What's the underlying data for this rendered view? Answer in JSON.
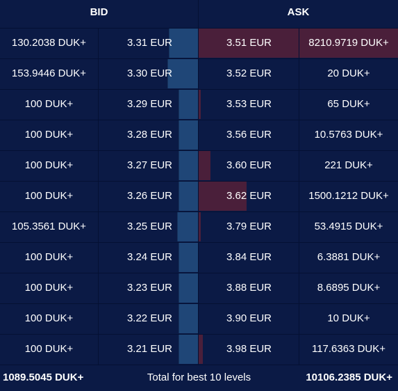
{
  "header": {
    "bid_label": "BID",
    "ask_label": "ASK"
  },
  "rows": [
    {
      "bid_qty": "130.2038 DUK+",
      "bid_price": "3.31 EUR",
      "ask_price": "3.51 EUR",
      "ask_qty": "8210.9719 DUK+",
      "bid_depth": 0.95,
      "ask_depth": 1.0
    },
    {
      "bid_qty": "153.9446 DUK+",
      "bid_price": "3.30 EUR",
      "ask_price": "3.52 EUR",
      "ask_qty": "20 DUK+",
      "bid_depth": 1.0,
      "ask_depth": 0.0
    },
    {
      "bid_qty": "100 DUK+",
      "bid_price": "3.29 EUR",
      "ask_price": "3.53 EUR",
      "ask_qty": "65 DUK+",
      "bid_depth": 0.63,
      "ask_depth": 0.01
    },
    {
      "bid_qty": "100 DUK+",
      "bid_price": "3.28 EUR",
      "ask_price": "3.56 EUR",
      "ask_qty": "10.5763 DUK+",
      "bid_depth": 0.63,
      "ask_depth": 0.0
    },
    {
      "bid_qty": "100 DUK+",
      "bid_price": "3.27 EUR",
      "ask_price": "3.60 EUR",
      "ask_qty": "221 DUK+",
      "bid_depth": 0.63,
      "ask_depth": 0.06
    },
    {
      "bid_qty": "100 DUK+",
      "bid_price": "3.26 EUR",
      "ask_price": "3.62 EUR",
      "ask_qty": "1500.1212 DUK+",
      "bid_depth": 0.63,
      "ask_depth": 0.24
    },
    {
      "bid_qty": "105.3561 DUK+",
      "bid_price": "3.25 EUR",
      "ask_price": "3.79 EUR",
      "ask_qty": "53.4915 DUK+",
      "bid_depth": 0.68,
      "ask_depth": 0.01
    },
    {
      "bid_qty": "100 DUK+",
      "bid_price": "3.24 EUR",
      "ask_price": "3.84 EUR",
      "ask_qty": "6.3881 DUK+",
      "bid_depth": 0.63,
      "ask_depth": 0.0
    },
    {
      "bid_qty": "100 DUK+",
      "bid_price": "3.23 EUR",
      "ask_price": "3.88 EUR",
      "ask_qty": "8.6895 DUK+",
      "bid_depth": 0.63,
      "ask_depth": 0.0
    },
    {
      "bid_qty": "100 DUK+",
      "bid_price": "3.22 EUR",
      "ask_price": "3.90 EUR",
      "ask_qty": "10 DUK+",
      "bid_depth": 0.63,
      "ask_depth": 0.0
    },
    {
      "bid_qty": "100 DUK+",
      "bid_price": "3.21 EUR",
      "ask_price": "3.98 EUR",
      "ask_qty": "117.6363 DUK+",
      "bid_depth": 0.63,
      "ask_depth": 0.02
    }
  ],
  "footer": {
    "bid_total": "1089.5045 DUK+",
    "label": "Total for best 10 levels",
    "ask_total": "10106.2385 DUK+"
  },
  "colors": {
    "background": "#0b1a45",
    "bid_bar": "#1f4677",
    "ask_bar": "#4a1f3a",
    "grid": "#041033"
  }
}
